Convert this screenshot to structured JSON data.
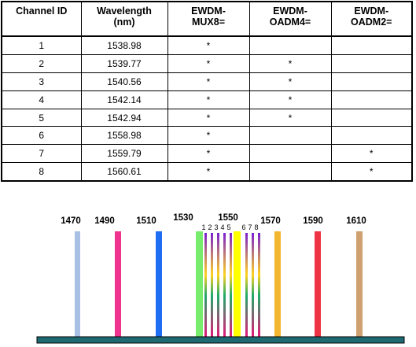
{
  "table": {
    "headers": [
      [
        "Channel ID",
        ""
      ],
      [
        "Wavelength",
        "(nm)"
      ],
      [
        "EWDM-",
        "MUX8="
      ],
      [
        "EWDM-",
        "OADM4="
      ],
      [
        "EWDM-",
        "OADM2="
      ]
    ],
    "rows": [
      {
        "id": "1",
        "wavelength": "1538.98",
        "mux8": "*",
        "oadm4": "",
        "oadm2": ""
      },
      {
        "id": "2",
        "wavelength": "1539.77",
        "mux8": "*",
        "oadm4": "*",
        "oadm2": ""
      },
      {
        "id": "3",
        "wavelength": "1540.56",
        "mux8": "*",
        "oadm4": "*",
        "oadm2": ""
      },
      {
        "id": "4",
        "wavelength": "1542.14",
        "mux8": "*",
        "oadm4": "*",
        "oadm2": ""
      },
      {
        "id": "5",
        "wavelength": "1542.94",
        "mux8": "*",
        "oadm4": "*",
        "oadm2": ""
      },
      {
        "id": "6",
        "wavelength": "1558.98",
        "mux8": "*",
        "oadm4": "",
        "oadm2": ""
      },
      {
        "id": "7",
        "wavelength": "1559.79",
        "mux8": "*",
        "oadm4": "",
        "oadm2": "*"
      },
      {
        "id": "8",
        "wavelength": "1560.61",
        "mux8": "*",
        "oadm4": "",
        "oadm2": "*"
      }
    ]
  },
  "spectrum": {
    "cwdm_channels": [
      {
        "label": "1470",
        "color": "#a8c0e4"
      },
      {
        "label": "1490",
        "color": "#f0338e"
      },
      {
        "label": "1510",
        "color": "#1f6df2"
      },
      {
        "label": "1530",
        "color": "#78ec6c"
      },
      {
        "label": "1550",
        "color": "#ffff00"
      },
      {
        "label": "1570",
        "color": "#f2b630"
      },
      {
        "label": "1590",
        "color": "#ee3344"
      },
      {
        "label": "1610",
        "color": "#cfa070"
      }
    ],
    "dwdm_numbers_group1": [
      "1",
      "2",
      "3",
      "4",
      "5"
    ],
    "dwdm_numbers_group2": [
      "6",
      "7",
      "8"
    ],
    "colors": {
      "baseline": "#1d6a72",
      "grad_top": "#7a1fd0",
      "grad_bottom": "#e8147a"
    }
  }
}
